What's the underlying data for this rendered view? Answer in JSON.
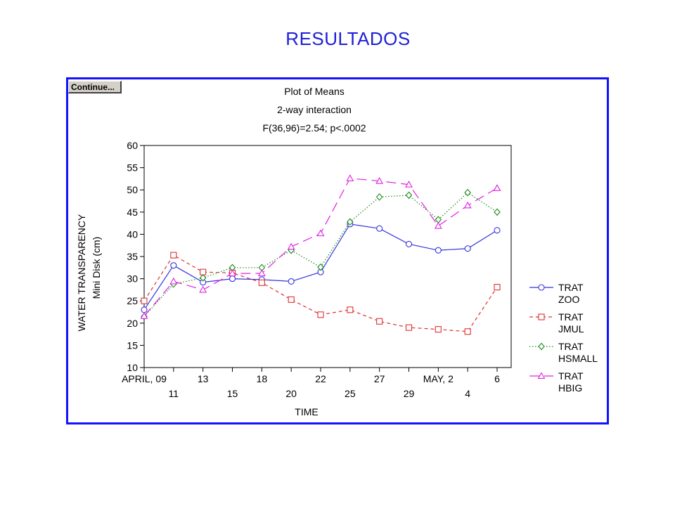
{
  "slide": {
    "title": "RESULTADOS"
  },
  "window": {
    "continue_label": "Continue..."
  },
  "chart_data": {
    "type": "line",
    "title": [
      "Plot of Means",
      "2-way interaction",
      "F(36,96)=2.54; p<.0002"
    ],
    "xlabel": "TIME",
    "ylabel": [
      "WATER TRANSPARENCY",
      "Mini Disk (cm)"
    ],
    "ylim": [
      10,
      60
    ],
    "yticks": [
      10,
      15,
      20,
      25,
      30,
      35,
      40,
      45,
      50,
      55,
      60
    ],
    "categories": [
      "APRIL, 09",
      "11",
      "13",
      "15",
      "18",
      "20",
      "22",
      "25",
      "27",
      "29",
      "MAY, 2",
      "4",
      "6"
    ],
    "grid": false,
    "legend": "right",
    "series": [
      {
        "name": [
          "TRAT",
          "ZOO"
        ],
        "color": "#3333dd",
        "marker": "circle",
        "dash": "solid",
        "values": [
          23,
          33,
          29.2,
          30,
          29.8,
          29.4,
          31.5,
          42.3,
          41.3,
          37.8,
          36.4,
          36.8,
          40.9
        ]
      },
      {
        "name": [
          "TRAT",
          "JMUL"
        ],
        "color": "#e03030",
        "marker": "square",
        "dash": "short",
        "values": [
          25,
          35.3,
          31.5,
          31.3,
          29.1,
          25.3,
          21.9,
          23,
          20.4,
          19,
          18.6,
          18.1,
          28.1
        ]
      },
      {
        "name": [
          "TRAT",
          "HSMALL"
        ],
        "color": "#1a8a1a",
        "marker": "diamond",
        "dash": "dotted",
        "values": [
          21.5,
          28.8,
          30.2,
          32.5,
          32.5,
          36.4,
          32.6,
          42.8,
          48.4,
          48.8,
          43.3,
          49.4,
          45
        ]
      },
      {
        "name": [
          "TRAT",
          "HBIG"
        ],
        "color": "#e020e0",
        "marker": "triangle",
        "dash": "long",
        "values": [
          21.6,
          29.4,
          27.5,
          31.2,
          31.2,
          37.2,
          40.2,
          52.6,
          52,
          51.2,
          41.9,
          46.5,
          50.4
        ]
      }
    ]
  }
}
